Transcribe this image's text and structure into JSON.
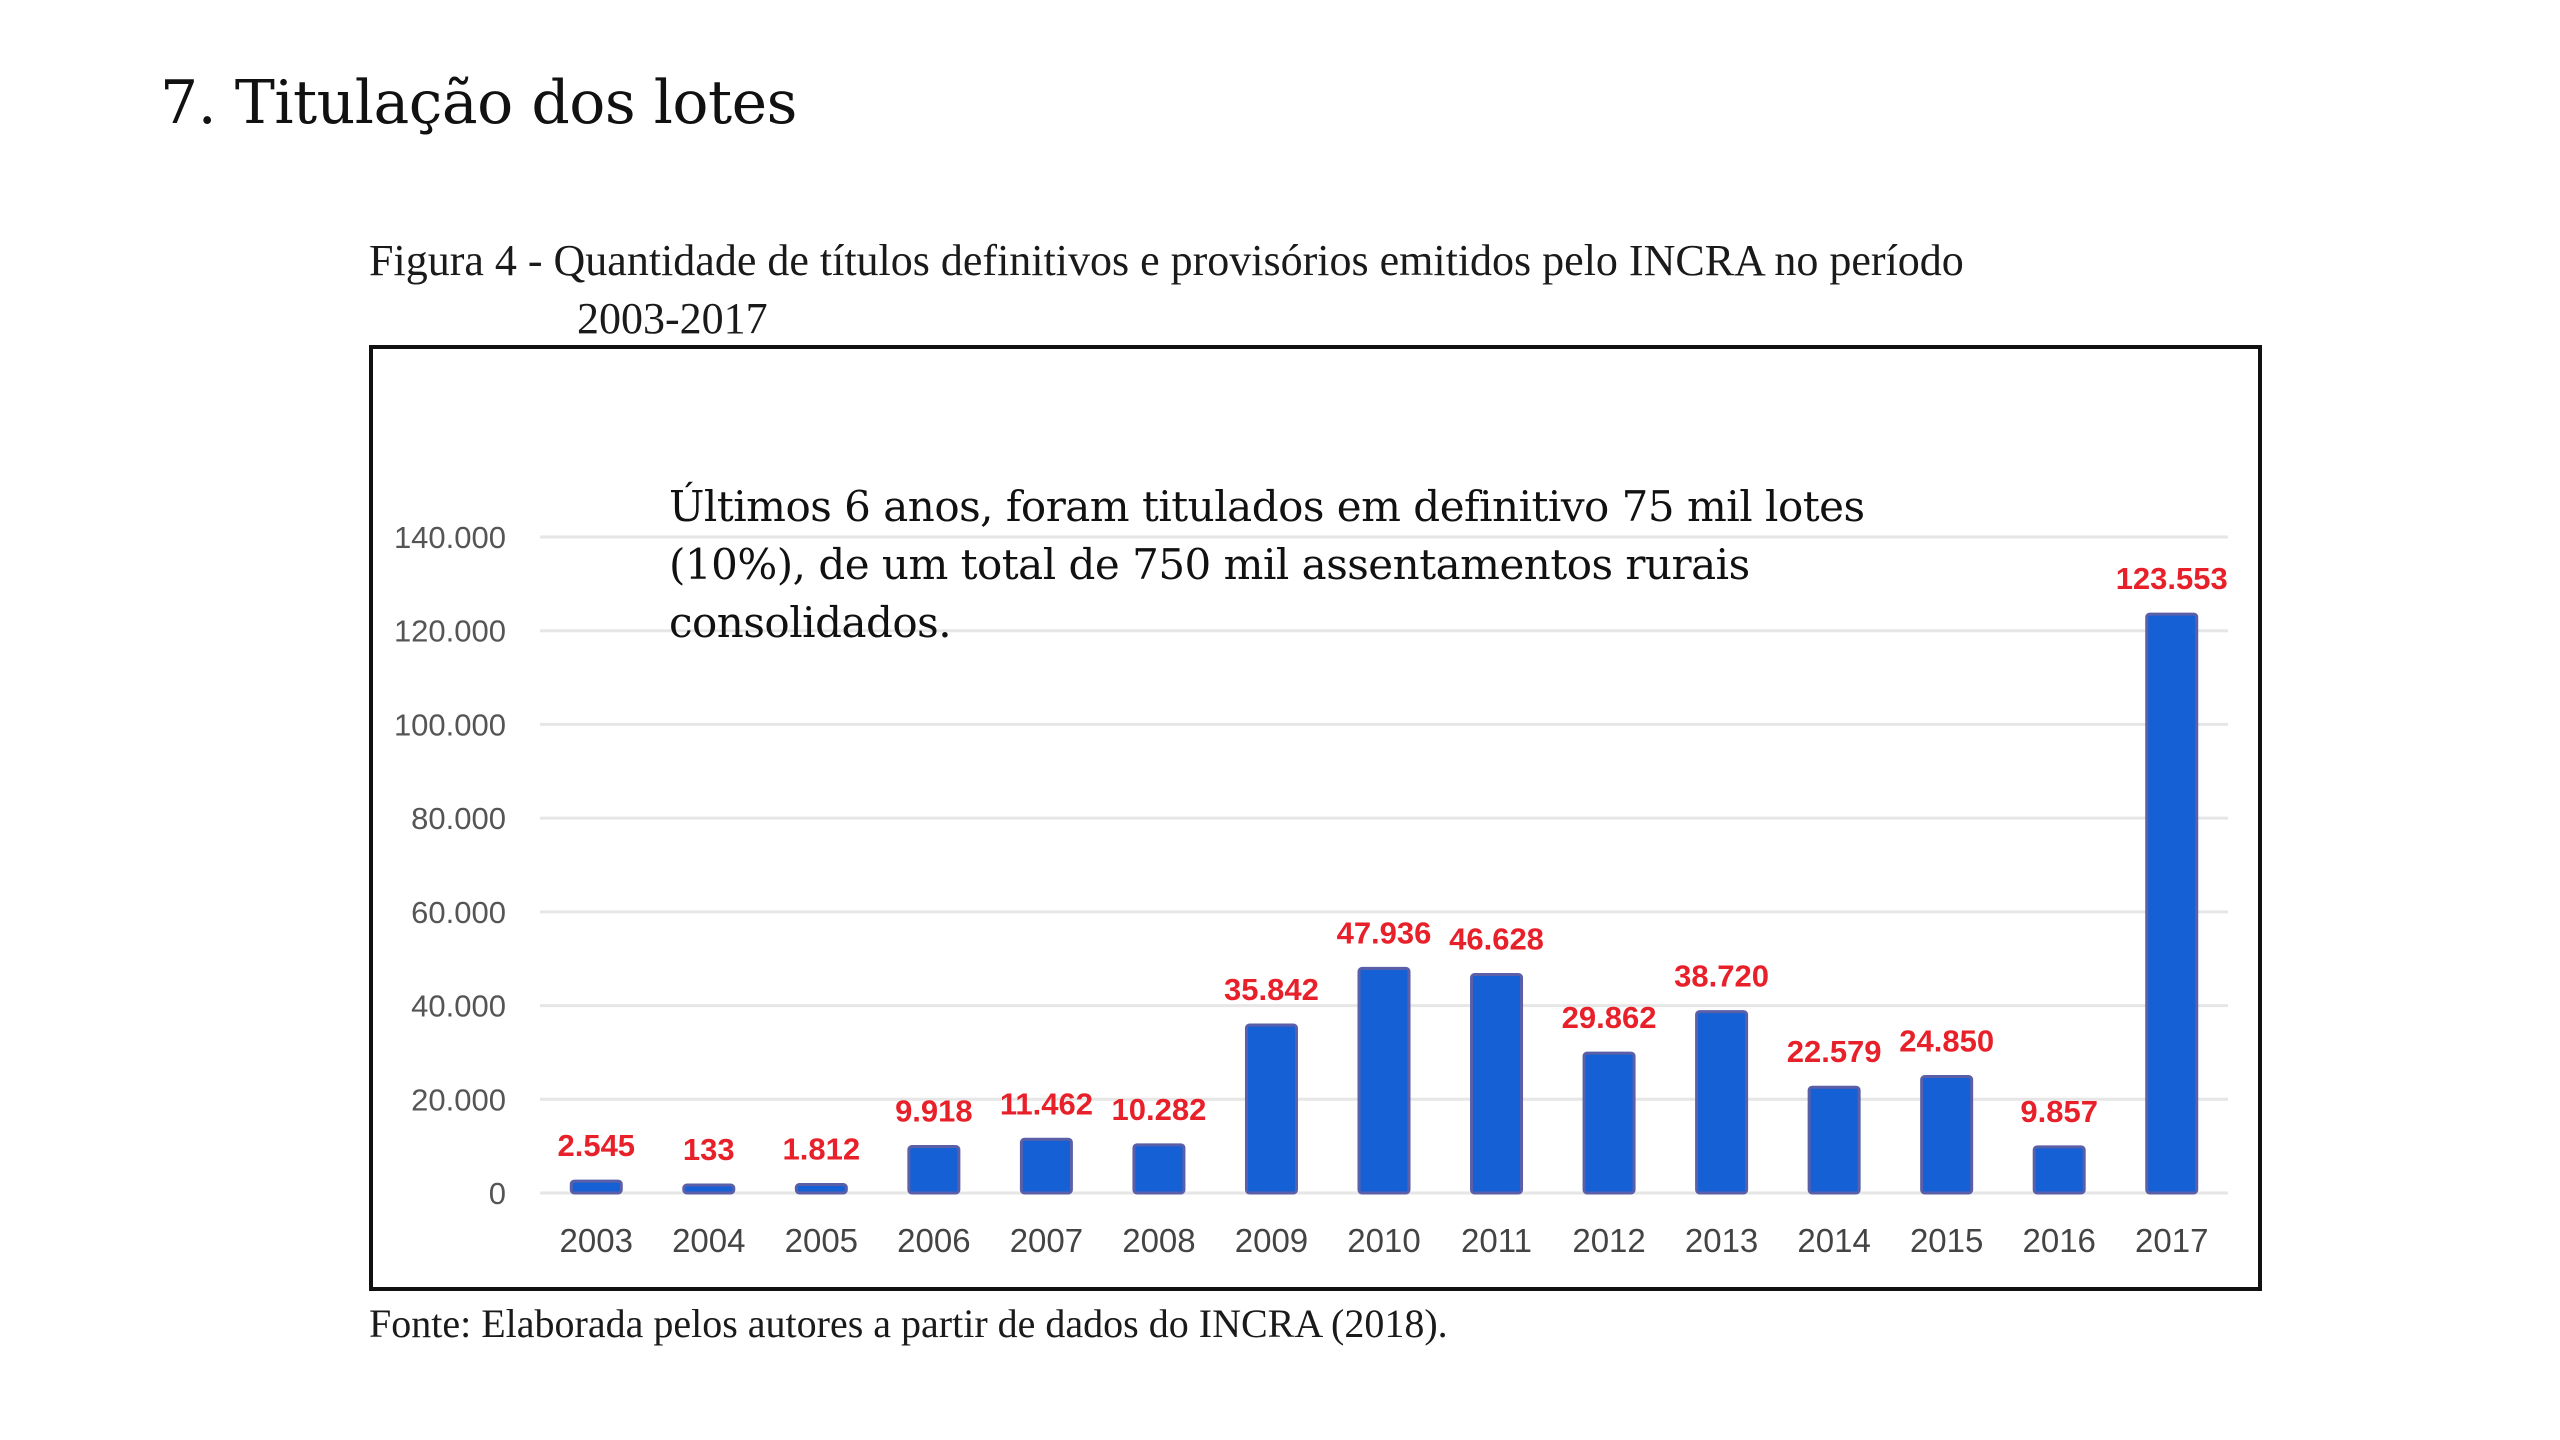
{
  "page": {
    "section_title": "7. Titulação dos lotes",
    "caption_line1": "Figura 4 - Quantidade de títulos definitivos e provisórios emitidos pelo INCRA no período",
    "caption_line2": "2003-2017",
    "annotation_lines": [
      "Últimos 6 anos, foram titulados em definitivo 75 mil lotes",
      "(10%), de um total de 750 mil assentamentos rurais",
      "consolidados."
    ],
    "source": "Fonte: Elaborada pelos autores a partir de dados do INCRA (2018)."
  },
  "colors": {
    "bar": "#1560d4",
    "bar_edge": "#5a5fa8",
    "data_label": "#e8202a",
    "gridline": "#e6e6e6"
  },
  "chart_data": {
    "type": "bar",
    "title": "Quantidade de títulos definitivos e provisórios emitidos pelo INCRA no período 2003-2017",
    "xlabel": "",
    "ylabel": "",
    "categories": [
      "2003",
      "2004",
      "2005",
      "2006",
      "2007",
      "2008",
      "2009",
      "2010",
      "2011",
      "2012",
      "2013",
      "2014",
      "2015",
      "2016",
      "2017"
    ],
    "values": [
      2545,
      133,
      1812,
      9918,
      11462,
      10282,
      35842,
      47936,
      46628,
      29862,
      38720,
      22579,
      24850,
      9857,
      123553
    ],
    "data_labels": [
      "2.545",
      "133",
      "1.812",
      "9.918",
      "11.462",
      "10.282",
      "35.842",
      "47.936",
      "46.628",
      "29.862",
      "38.720",
      "22.579",
      "24.850",
      "9.857",
      "123.553"
    ],
    "ylim": [
      0,
      140000
    ],
    "yticks": [
      0,
      20000,
      40000,
      60000,
      80000,
      100000,
      120000,
      140000
    ],
    "ytick_labels": [
      "0",
      "20.000",
      "40.000",
      "60.000",
      "80.000",
      "100.000",
      "120.000",
      "140.000"
    ],
    "grid": true,
    "legend": "none"
  }
}
